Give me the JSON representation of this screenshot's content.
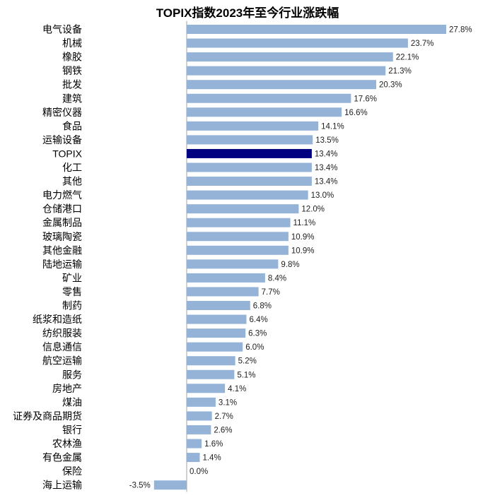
{
  "chart_data": {
    "type": "bar",
    "orientation": "horizontal",
    "title": "TOPIX指数2023年至今行业涨跌幅",
    "xlabel": "",
    "ylabel": "",
    "xlim": [
      -3.5,
      27.8
    ],
    "grid": false,
    "legend": "none",
    "value_suffix": "%",
    "colors": {
      "bar": "#95B3D7",
      "highlight": "#000080",
      "axis": "#A6A6A6"
    },
    "highlight_category": "TOPIX",
    "categories": [
      "电气设备",
      "机械",
      "橡胶",
      "钢铁",
      "批发",
      "建筑",
      "精密仪器",
      "食品",
      "运输设备",
      "TOPIX",
      "化工",
      "其他",
      "电力燃气",
      "仓储港口",
      "金属制品",
      "玻璃陶瓷",
      "其他金融",
      "陆地运输",
      "矿业",
      "零售",
      "制药",
      "纸浆和造纸",
      "纺织服装",
      "信息通信",
      "航空运输",
      "服务",
      "房地产",
      "煤油",
      "证券及商品期货",
      "银行",
      "农林渔",
      "有色金属",
      "保险",
      "海上运输"
    ],
    "values": [
      27.8,
      23.7,
      22.1,
      21.3,
      20.3,
      17.6,
      16.6,
      14.1,
      13.5,
      13.4,
      13.4,
      13.4,
      13.0,
      12.0,
      11.1,
      10.9,
      10.9,
      9.8,
      8.4,
      7.7,
      6.8,
      6.4,
      6.3,
      6.0,
      5.2,
      5.1,
      4.1,
      3.1,
      2.7,
      2.6,
      1.6,
      1.4,
      0.0,
      -3.5
    ],
    "value_labels": [
      "27.8%",
      "23.7%",
      "22.1%",
      "21.3%",
      "20.3%",
      "17.6%",
      "16.6%",
      "14.1%",
      "13.5%",
      "13.4%",
      "13.4%",
      "13.4%",
      "13.0%",
      "12.0%",
      "11.1%",
      "10.9%",
      "10.9%",
      "9.8%",
      "8.4%",
      "7.7%",
      "6.8%",
      "6.4%",
      "6.3%",
      "6.0%",
      "5.2%",
      "5.1%",
      "4.1%",
      "3.1%",
      "2.7%",
      "2.6%",
      "1.6%",
      "1.4%",
      "0.0%",
      "-3.5%"
    ]
  }
}
